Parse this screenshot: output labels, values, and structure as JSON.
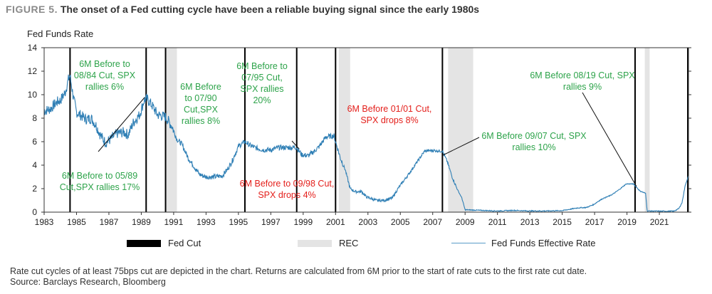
{
  "figure": {
    "number": "FIGURE 5.",
    "title": "The onset of a Fed cutting cycle have been a reliable buying signal since the early 1980s"
  },
  "chart_data": {
    "type": "line",
    "ylabel": "Fed Funds Rate",
    "xlabel": "",
    "xlim": [
      1983,
      2022.8
    ],
    "ylim": [
      0,
      14
    ],
    "x_ticks": [
      1983,
      1985,
      1987,
      1989,
      1991,
      1993,
      1995,
      1997,
      1999,
      2001,
      2003,
      2005,
      2007,
      2009,
      2011,
      2013,
      2015,
      2017,
      2019,
      2021
    ],
    "y_ticks": [
      0,
      2,
      4,
      6,
      8,
      10,
      12,
      14
    ],
    "grid": false,
    "legend_position": "bottom",
    "legend": [
      "Fed Cut",
      "REC",
      "Fed Funds Effective Rate"
    ],
    "colors": {
      "fed_cut": "#000000",
      "recession": "#e4e4e4",
      "rate": "#2f7fb5",
      "green": "#2da34a",
      "red": "#e4201c"
    },
    "fed_cut_dates": [
      1984.6,
      1989.3,
      1990.5,
      1995.4,
      1998.6,
      2001.0,
      2007.6,
      2019.5,
      2022.8
    ],
    "recessions": [
      [
        1990.55,
        1991.2
      ],
      [
        2001.2,
        2001.9
      ],
      [
        2007.95,
        2009.5
      ],
      [
        2020.1,
        2020.4
      ]
    ],
    "series": [
      {
        "name": "Fed Funds Effective Rate",
        "points": [
          [
            1983.0,
            8.6
          ],
          [
            1983.4,
            8.8
          ],
          [
            1983.8,
            9.4
          ],
          [
            1984.0,
            9.5
          ],
          [
            1984.3,
            10.2
          ],
          [
            1984.5,
            11.3
          ],
          [
            1984.6,
            11.6
          ],
          [
            1984.8,
            9.8
          ],
          [
            1985.0,
            8.5
          ],
          [
            1985.3,
            8.2
          ],
          [
            1985.6,
            7.9
          ],
          [
            1985.9,
            8.0
          ],
          [
            1986.2,
            7.4
          ],
          [
            1986.5,
            6.5
          ],
          [
            1986.8,
            5.9
          ],
          [
            1987.1,
            6.2
          ],
          [
            1987.5,
            6.7
          ],
          [
            1987.9,
            6.8
          ],
          [
            1988.2,
            6.6
          ],
          [
            1988.5,
            7.6
          ],
          [
            1988.9,
            8.3
          ],
          [
            1989.2,
            9.6
          ],
          [
            1989.4,
            9.6
          ],
          [
            1989.7,
            9.0
          ],
          [
            1990.0,
            8.3
          ],
          [
            1990.5,
            8.1
          ],
          [
            1990.9,
            7.3
          ],
          [
            1991.2,
            6.2
          ],
          [
            1991.5,
            5.8
          ],
          [
            1991.9,
            4.6
          ],
          [
            1992.2,
            4.0
          ],
          [
            1992.6,
            3.2
          ],
          [
            1993.0,
            3.0
          ],
          [
            1993.5,
            3.0
          ],
          [
            1994.0,
            3.1
          ],
          [
            1994.3,
            3.6
          ],
          [
            1994.6,
            4.3
          ],
          [
            1995.0,
            5.6
          ],
          [
            1995.4,
            6.0
          ],
          [
            1995.7,
            5.7
          ],
          [
            1996.0,
            5.5
          ],
          [
            1996.5,
            5.3
          ],
          [
            1997.0,
            5.3
          ],
          [
            1997.5,
            5.5
          ],
          [
            1998.0,
            5.5
          ],
          [
            1998.6,
            5.5
          ],
          [
            1998.9,
            4.9
          ],
          [
            1999.3,
            4.8
          ],
          [
            1999.7,
            5.2
          ],
          [
            2000.0,
            5.6
          ],
          [
            2000.4,
            6.4
          ],
          [
            2000.9,
            6.5
          ],
          [
            2001.0,
            6.0
          ],
          [
            2001.3,
            4.6
          ],
          [
            2001.6,
            3.6
          ],
          [
            2001.9,
            2.0
          ],
          [
            2002.2,
            1.75
          ],
          [
            2002.6,
            1.75
          ],
          [
            2002.9,
            1.3
          ],
          [
            2003.5,
            1.0
          ],
          [
            2004.0,
            1.0
          ],
          [
            2004.5,
            1.2
          ],
          [
            2004.9,
            2.1
          ],
          [
            2005.5,
            3.2
          ],
          [
            2005.9,
            4.0
          ],
          [
            2006.5,
            5.2
          ],
          [
            2007.0,
            5.25
          ],
          [
            2007.6,
            5.2
          ],
          [
            2007.9,
            4.3
          ],
          [
            2008.2,
            3.0
          ],
          [
            2008.5,
            2.0
          ],
          [
            2008.8,
            1.2
          ],
          [
            2009.0,
            0.2
          ],
          [
            2010.0,
            0.15
          ],
          [
            2011.0,
            0.1
          ],
          [
            2012.0,
            0.15
          ],
          [
            2013.0,
            0.1
          ],
          [
            2014.0,
            0.1
          ],
          [
            2015.0,
            0.13
          ],
          [
            2015.95,
            0.36
          ],
          [
            2016.5,
            0.4
          ],
          [
            2016.95,
            0.65
          ],
          [
            2017.2,
            0.9
          ],
          [
            2017.5,
            1.15
          ],
          [
            2017.95,
            1.4
          ],
          [
            2018.2,
            1.6
          ],
          [
            2018.5,
            1.9
          ],
          [
            2018.95,
            2.4
          ],
          [
            2019.4,
            2.4
          ],
          [
            2019.6,
            2.1
          ],
          [
            2019.8,
            1.8
          ],
          [
            2020.15,
            1.6
          ],
          [
            2020.25,
            0.1
          ],
          [
            2021.0,
            0.08
          ],
          [
            2021.9,
            0.08
          ],
          [
            2022.2,
            0.3
          ],
          [
            2022.4,
            0.8
          ],
          [
            2022.6,
            2.3
          ],
          [
            2022.8,
            3.1
          ]
        ]
      }
    ],
    "annotations": [
      {
        "id": "a84",
        "color": "green",
        "lines": [
          "6M Before to",
          "08/84 Cut, SPX",
          "rallies 6%"
        ]
      },
      {
        "id": "a89",
        "color": "green",
        "lines": [
          "6M Before to 05/89",
          "Cut,SPX rallies 17%"
        ]
      },
      {
        "id": "a90",
        "color": "green",
        "lines": [
          "6M Before",
          "to 07/90",
          "Cut,SPX",
          "rallies 8%"
        ]
      },
      {
        "id": "a95",
        "color": "green",
        "lines": [
          "6M Before to",
          "07/95 Cut,",
          "SPX rallies",
          "20%"
        ]
      },
      {
        "id": "a98",
        "color": "red",
        "lines": [
          "6M Before to 09/98 Cut,",
          "SPX drops 4%"
        ]
      },
      {
        "id": "a01",
        "color": "red",
        "lines": [
          "6M Before 01/01 Cut,",
          "SPX drops 8%"
        ]
      },
      {
        "id": "a07",
        "color": "green",
        "lines": [
          "6M Before 09/07 Cut, SPX",
          "rallies 10%"
        ]
      },
      {
        "id": "a19",
        "color": "green",
        "lines": [
          "6M Before 08/19 Cut, SPX",
          "rallies 9%"
        ]
      }
    ]
  },
  "legend_labels": {
    "fed_cut": "Fed Cut",
    "rec": "REC",
    "rate": "Fed Funds Effective Rate"
  },
  "footnote": {
    "line1": "Rate cut cycles of at least 75bps cut are depicted in the chart. Returns are calculated from 6M prior to the start of rate cuts to the first rate cut date.",
    "line2": "Source: Barclays Research, Bloomberg"
  }
}
